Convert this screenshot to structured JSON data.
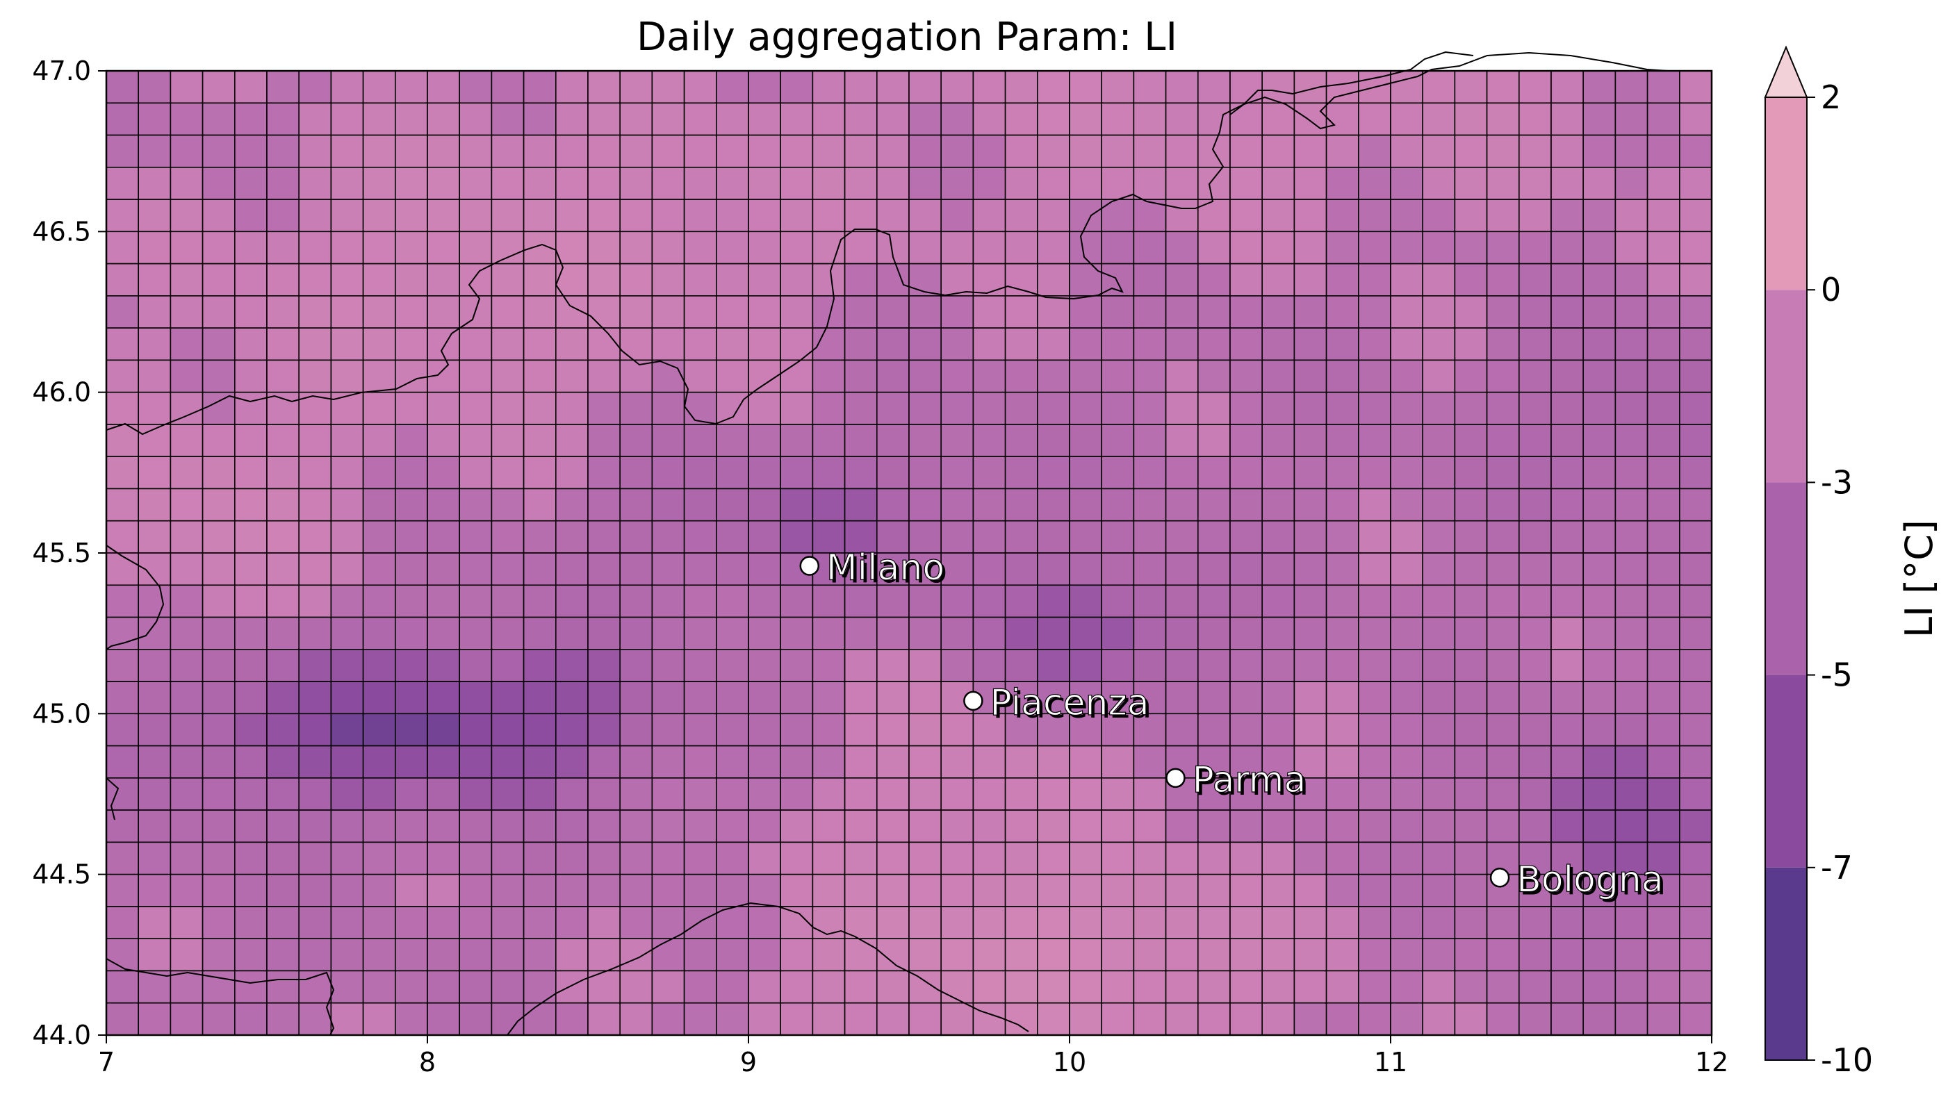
{
  "chart_data": {
    "type": "heatmap",
    "title": "Daily aggregation Param: LI",
    "xlabel": "",
    "ylabel": "",
    "xlim": [
      7,
      12
    ],
    "ylim": [
      44.0,
      47.0
    ],
    "x_ticks": [
      "7",
      "8",
      "9",
      "10",
      "11",
      "12"
    ],
    "y_ticks": [
      "44.0",
      "44.5",
      "45.0",
      "45.5",
      "46.0",
      "46.5",
      "47.0"
    ],
    "colorbar": {
      "label": "LI [°C]",
      "ticks": [
        "-10",
        "-7",
        "-5",
        "-3",
        "0",
        "2"
      ],
      "boundaries": [
        -10,
        -7,
        -5,
        -3,
        0,
        2
      ],
      "extend": "max",
      "colors": [
        "#5a3a8c",
        "#8a4a9e",
        "#aa63aa",
        "#c87cb5",
        "#e29ab8",
        "#f2d2d8"
      ]
    },
    "grid_cells": {
      "cols": 50,
      "rows": 30,
      "lon_step": 0.1,
      "lat_step": 0.1
    },
    "cities": [
      {
        "name": "Milano",
        "lon": 9.19,
        "lat": 45.46
      },
      {
        "name": "Piacenza",
        "lon": 9.7,
        "lat": 45.04
      },
      {
        "name": "Parma",
        "lon": 10.33,
        "lat": 44.8
      },
      {
        "name": "Bologna",
        "lon": 11.34,
        "lat": 44.49
      }
    ]
  }
}
